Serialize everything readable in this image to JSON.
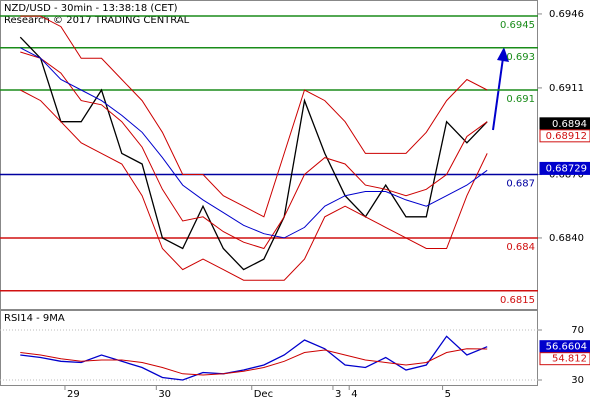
{
  "chart_data": [
    {
      "type": "line",
      "title": "NZD/USD - 30min - 13:38:18 (CET)",
      "subtitle": "Research © 2017 TRADING CENTRAL",
      "x": [
        1,
        2,
        3,
        4,
        5,
        6,
        7,
        8,
        9,
        10,
        11,
        12,
        13,
        14,
        15,
        16,
        17,
        18,
        19,
        20,
        21,
        22,
        23,
        24
      ],
      "xlim": [
        0,
        26.5
      ],
      "ylim": [
        0.68059,
        0.69526
      ],
      "yticks": [
        0.6946,
        0.6911,
        {
          "value": 0.687,
          "label": "0.6870"
        },
        {
          "value": 0.684,
          "label": "0.6840"
        }
      ],
      "series": [
        {
          "color": "#000000",
          "values": [
            0.6935,
            0.6925,
            0.6895,
            0.6895,
            0.691,
            0.688,
            0.6875,
            0.684,
            0.6835,
            0.6855,
            0.6835,
            0.6825,
            0.683,
            0.685,
            0.6905,
            0.688,
            0.686,
            0.685,
            0.6865,
            0.685,
            0.685,
            0.6895,
            0.6885,
            0.6895
          ]
        },
        {
          "color": "#cc0000",
          "values": [
            0.6945,
            0.6945,
            0.694,
            0.6925,
            0.6925,
            0.6915,
            0.6905,
            0.689,
            0.687,
            0.687,
            0.686,
            0.6855,
            0.685,
            0.688,
            0.691,
            0.6905,
            0.6895,
            0.688,
            0.688,
            0.688,
            0.689,
            0.6905,
            0.6915,
            0.691
          ]
        },
        {
          "color": "#cc0000",
          "values": [
            0.6928,
            0.6925,
            0.6918,
            0.6905,
            0.6903,
            0.6895,
            0.6883,
            0.6863,
            0.6848,
            0.685,
            0.6843,
            0.6838,
            0.6835,
            0.685,
            0.687,
            0.6878,
            0.6875,
            0.6865,
            0.6863,
            0.686,
            0.6863,
            0.687,
            0.6888,
            0.6895
          ]
        },
        {
          "color": "#cc0000",
          "values": [
            0.691,
            0.6905,
            0.6895,
            0.6885,
            0.688,
            0.6875,
            0.686,
            0.6835,
            0.6825,
            0.683,
            0.6825,
            0.682,
            0.682,
            0.682,
            0.683,
            0.685,
            0.6855,
            0.685,
            0.6845,
            0.684,
            0.6835,
            0.6835,
            0.686,
            0.688
          ]
        },
        {
          "color": "#0000cc",
          "values": [
            0.693,
            0.6925,
            0.6915,
            0.691,
            0.6905,
            0.6898,
            0.689,
            0.6878,
            0.6865,
            0.6858,
            0.6852,
            0.6846,
            0.6842,
            0.684,
            0.6845,
            0.6855,
            0.686,
            0.6862,
            0.6862,
            0.6858,
            0.6855,
            0.686,
            0.6865,
            0.6872
          ]
        }
      ],
      "levels": [
        {
          "value": 0.6945,
          "color": "#1a8c1a"
        },
        {
          "value": 0.693,
          "color": "#1a8c1a"
        },
        {
          "value": 0.691,
          "color": "#1a8c1a"
        },
        {
          "value": 0.687,
          "color": "#0000a0"
        },
        {
          "value": 0.684,
          "color": "#d01010"
        },
        {
          "value": 0.6815,
          "color": "#d01010"
        }
      ],
      "markers": [
        {
          "value": 0.6894,
          "color": "#000000"
        },
        {
          "value": 0.68912,
          "color": "#d01010"
        },
        {
          "value": 0.68729,
          "color": "#0000cc"
        }
      ]
    },
    {
      "type": "line",
      "title": "RSI14 - 9MA",
      "x": [
        1,
        2,
        3,
        4,
        5,
        6,
        7,
        8,
        9,
        10,
        11,
        12,
        13,
        14,
        15,
        16,
        17,
        18,
        19,
        20,
        21,
        22,
        23,
        24
      ],
      "xlim": [
        0,
        26.5
      ],
      "ylim": [
        26,
        86
      ],
      "yticks": [
        70,
        30
      ],
      "xticks": [
        {
          "value": 3.2,
          "label": "29"
        },
        {
          "value": 7.7,
          "label": "30"
        },
        {
          "value": 12.4,
          "label": "Dec"
        },
        {
          "value": 16.4,
          "label": "3"
        },
        {
          "value": 17.2,
          "label": "4"
        },
        {
          "value": 21.8,
          "label": "5"
        }
      ],
      "series": [
        {
          "color": "#0000cc",
          "values": [
            50,
            48,
            45,
            44,
            50,
            45,
            40,
            32,
            30,
            36,
            35,
            38,
            42,
            50,
            62,
            55,
            42,
            40,
            48,
            38,
            42,
            65,
            50,
            56.6604
          ]
        },
        {
          "color": "#cc0000",
          "values": [
            52,
            50,
            47,
            45,
            46,
            46,
            44,
            40,
            35,
            34,
            35,
            37,
            40,
            45,
            52,
            54,
            50,
            46,
            44,
            42,
            44,
            52,
            55,
            54.812
          ]
        }
      ],
      "markers": [
        {
          "value": 56.6604,
          "color": "#0000cc"
        },
        {
          "value": 54.812,
          "color": "#d01010"
        }
      ]
    }
  ]
}
